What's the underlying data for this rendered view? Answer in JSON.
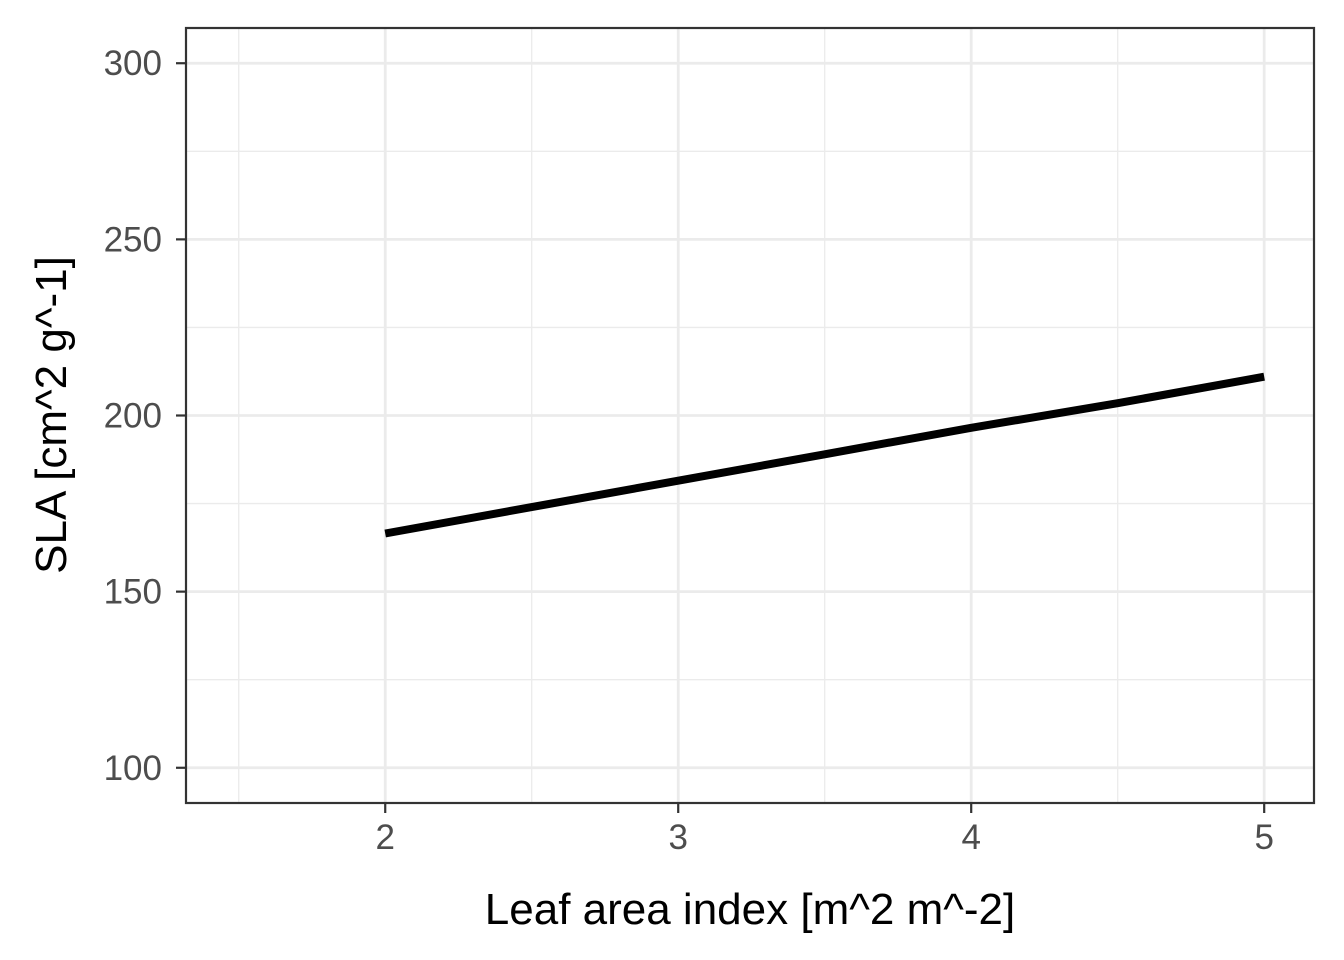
{
  "chart_data": {
    "type": "line",
    "title": "",
    "xlabel": "Leaf area index [m^2 m^-2]",
    "ylabel": "SLA [cm^2 g^-1]",
    "xlim": [
      1.32,
      5.17
    ],
    "ylim": [
      90,
      310
    ],
    "x_ticks": [
      2,
      3,
      4,
      5
    ],
    "y_ticks": [
      100,
      150,
      200,
      250,
      300
    ],
    "x_tick_labels": [
      "2",
      "3",
      "4",
      "5"
    ],
    "y_tick_labels": [
      "100",
      "150",
      "200",
      "250",
      "300"
    ],
    "grid": true,
    "legend": "none",
    "series": [
      {
        "color": "#000000",
        "x": [
          2.0,
          2.5,
          3.0,
          3.5,
          4.0,
          4.5,
          5.0
        ],
        "y": [
          166.5,
          174.0,
          181.5,
          189.0,
          196.5,
          203.5,
          211.0
        ]
      }
    ]
  }
}
